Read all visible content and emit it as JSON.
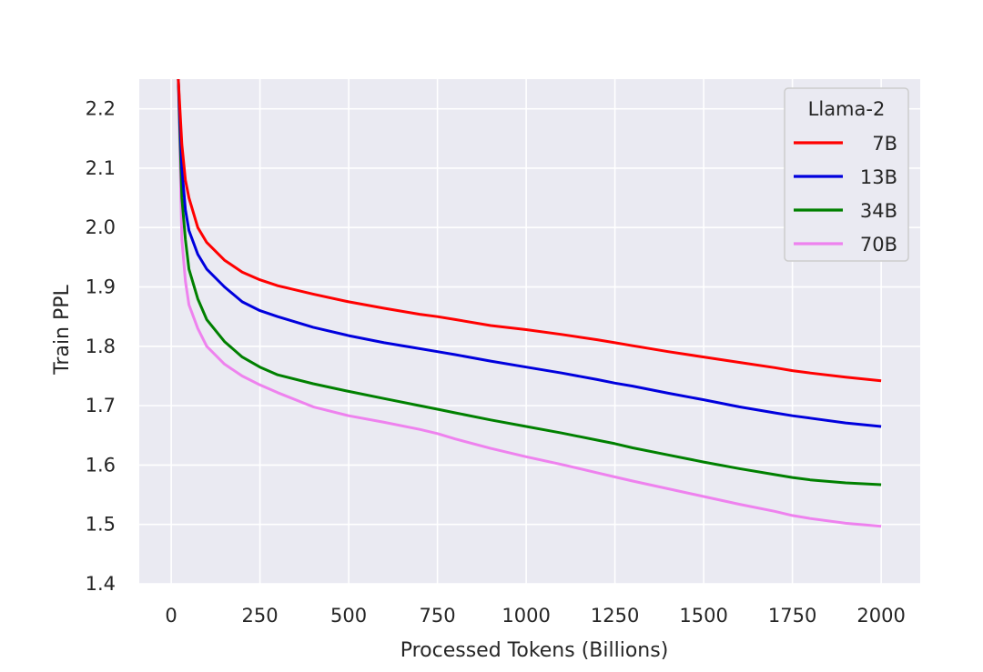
{
  "chart_data": {
    "type": "line",
    "xlabel": "Processed Tokens (Billions)",
    "ylabel": "Train PPL",
    "xlim": [
      -90,
      2110
    ],
    "ylim": [
      1.4,
      2.25
    ],
    "xticks": [
      0,
      250,
      500,
      750,
      1000,
      1250,
      1500,
      1750,
      2000
    ],
    "yticks": [
      1.4,
      1.5,
      1.6,
      1.7,
      1.8,
      1.9,
      2.0,
      2.1,
      2.2
    ],
    "grid": true,
    "background": "#eaeaf2",
    "legend": {
      "title": "Llama-2",
      "position": "top-right"
    },
    "x": [
      20,
      30,
      40,
      50,
      75,
      100,
      150,
      200,
      250,
      300,
      400,
      500,
      600,
      700,
      750,
      800,
      900,
      1000,
      1100,
      1200,
      1250,
      1300,
      1400,
      1500,
      1600,
      1700,
      1750,
      1800,
      1900,
      2000
    ],
    "series": [
      {
        "name": "7B",
        "color": "#ff0000",
        "values": [
          2.25,
          2.14,
          2.08,
          2.05,
          2.0,
          1.975,
          1.945,
          1.925,
          1.912,
          1.902,
          1.888,
          1.875,
          1.864,
          1.854,
          1.85,
          1.845,
          1.835,
          1.828,
          1.82,
          1.811,
          1.806,
          1.801,
          1.791,
          1.782,
          1.773,
          1.764,
          1.759,
          1.755,
          1.748,
          1.742
        ]
      },
      {
        "name": "13B",
        "color": "#0000dd",
        "values": [
          2.25,
          2.1,
          2.03,
          1.995,
          1.955,
          1.93,
          1.9,
          1.875,
          1.86,
          1.85,
          1.832,
          1.818,
          1.806,
          1.796,
          1.791,
          1.786,
          1.775,
          1.765,
          1.755,
          1.744,
          1.738,
          1.733,
          1.721,
          1.71,
          1.698,
          1.688,
          1.683,
          1.679,
          1.671,
          1.665
        ]
      },
      {
        "name": "34B",
        "color": "#008000",
        "values": [
          2.25,
          2.05,
          1.98,
          1.93,
          1.88,
          1.845,
          1.808,
          1.782,
          1.765,
          1.752,
          1.737,
          1.724,
          1.712,
          1.7,
          1.694,
          1.688,
          1.676,
          1.665,
          1.654,
          1.642,
          1.636,
          1.629,
          1.617,
          1.605,
          1.594,
          1.584,
          1.579,
          1.575,
          1.57,
          1.567
        ]
      },
      {
        "name": "70B",
        "color": "#ee82ee",
        "values": [
          2.25,
          1.98,
          1.91,
          1.87,
          1.83,
          1.8,
          1.77,
          1.75,
          1.735,
          1.722,
          1.698,
          1.683,
          1.672,
          1.66,
          1.653,
          1.644,
          1.628,
          1.614,
          1.601,
          1.587,
          1.58,
          1.573,
          1.56,
          1.547,
          1.534,
          1.522,
          1.515,
          1.51,
          1.502,
          1.497
        ]
      }
    ]
  }
}
